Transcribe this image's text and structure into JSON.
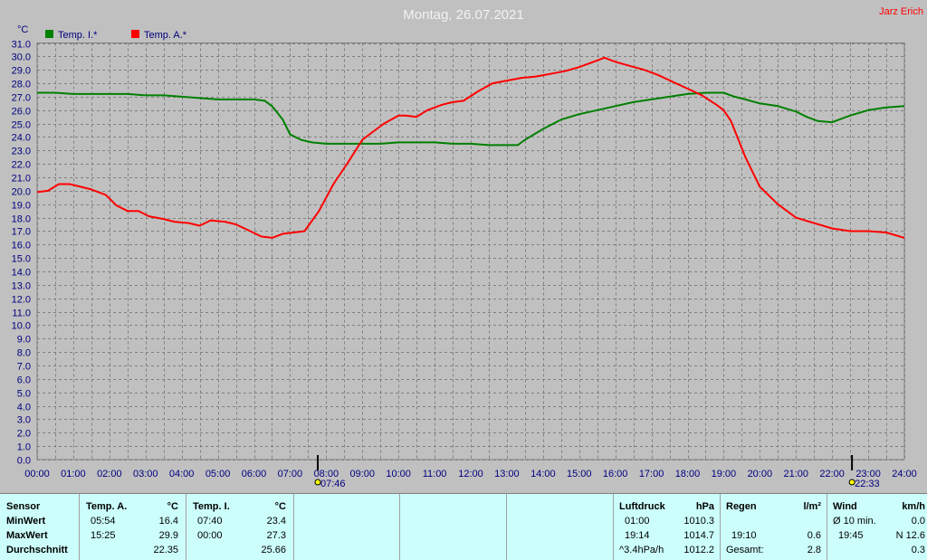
{
  "title": "Montag, 26.07.2021",
  "author": "Jarz Erich",
  "chart_data": {
    "type": "line",
    "ylabel": "°C",
    "ylim": [
      0,
      31
    ],
    "ytick_step": 1,
    "xlim": [
      0,
      24
    ],
    "x_ticks": [
      "00:00",
      "01:00",
      "02:00",
      "03:00",
      "04:00",
      "05:00",
      "06:00",
      "07:00",
      "08:00",
      "09:00",
      "10:00",
      "11:00",
      "12:00",
      "13:00",
      "14:00",
      "15:00",
      "16:00",
      "17:00",
      "18:00",
      "19:00",
      "20:00",
      "21:00",
      "22:00",
      "23:00",
      "24:00"
    ],
    "grid": true,
    "legend_position": "top-left",
    "series": [
      {
        "name": "Temp. I.*",
        "color": "#008000",
        "x": [
          0,
          0.5,
          1,
          1.5,
          2,
          2.5,
          3,
          3.5,
          4,
          4.5,
          5,
          5.5,
          6,
          6.3,
          6.5,
          6.8,
          7,
          7.3,
          7.6,
          8,
          8.5,
          9,
          9.5,
          10,
          10.5,
          11,
          11.5,
          12,
          12.5,
          13,
          13.3,
          13.5,
          14,
          14.5,
          15,
          15.5,
          16,
          16.5,
          17,
          17.5,
          18,
          18.5,
          19,
          19.3,
          19.6,
          20,
          20.5,
          21,
          21.3,
          21.6,
          22,
          22.5,
          23,
          23.5,
          24
        ],
        "y": [
          27.3,
          27.3,
          27.2,
          27.2,
          27.2,
          27.2,
          27.1,
          27.1,
          27.0,
          26.9,
          26.8,
          26.8,
          26.8,
          26.7,
          26.3,
          25.3,
          24.2,
          23.8,
          23.6,
          23.5,
          23.5,
          23.5,
          23.5,
          23.6,
          23.6,
          23.6,
          23.5,
          23.5,
          23.4,
          23.4,
          23.4,
          23.8,
          24.6,
          25.3,
          25.7,
          26.0,
          26.3,
          26.6,
          26.8,
          27.0,
          27.2,
          27.3,
          27.3,
          27.0,
          26.8,
          26.5,
          26.3,
          25.9,
          25.5,
          25.2,
          25.1,
          25.6,
          26.0,
          26.2,
          26.3
        ]
      },
      {
        "name": "Temp. A.*",
        "color": "#ff0000",
        "x": [
          0,
          0.3,
          0.6,
          0.9,
          1.2,
          1.5,
          1.9,
          2.2,
          2.5,
          2.8,
          3.1,
          3.5,
          3.8,
          4.2,
          4.5,
          4.8,
          5.2,
          5.5,
          5.9,
          6.2,
          6.5,
          6.8,
          7.1,
          7.4,
          7.8,
          8.2,
          8.6,
          9.0,
          9.3,
          9.6,
          10.0,
          10.2,
          10.5,
          10.8,
          11.2,
          11.5,
          11.8,
          12.2,
          12.6,
          13.0,
          13.4,
          13.8,
          14.2,
          14.6,
          15.0,
          15.4,
          15.7,
          16.0,
          16.4,
          16.8,
          17.2,
          17.6,
          18.0,
          18.4,
          18.8,
          19.0,
          19.2,
          19.6,
          20.0,
          20.5,
          21.0,
          21.5,
          22.0,
          22.5,
          23.0,
          23.5,
          24.0
        ],
        "y": [
          19.9,
          20.0,
          20.5,
          20.5,
          20.3,
          20.1,
          19.7,
          18.9,
          18.5,
          18.5,
          18.1,
          17.9,
          17.7,
          17.6,
          17.4,
          17.8,
          17.7,
          17.5,
          17.0,
          16.6,
          16.5,
          16.8,
          16.9,
          17.0,
          18.5,
          20.5,
          22.1,
          23.8,
          24.4,
          25.0,
          25.6,
          25.6,
          25.5,
          26.0,
          26.4,
          26.6,
          26.7,
          27.4,
          28.0,
          28.2,
          28.4,
          28.5,
          28.7,
          28.9,
          29.2,
          29.6,
          29.9,
          29.6,
          29.3,
          29.0,
          28.6,
          28.1,
          27.6,
          27.1,
          26.4,
          26.0,
          25.2,
          22.5,
          20.3,
          19.0,
          18.0,
          17.6,
          17.2,
          17.0,
          17.0,
          16.9,
          16.5
        ]
      }
    ],
    "markers": [
      {
        "time": "07:46",
        "label": "07:46"
      },
      {
        "time": "22:33",
        "label": "22:33"
      }
    ]
  },
  "stats": {
    "sensor": {
      "header": "Sensor",
      "rows": [
        "MinWert",
        "MaxWert",
        "Durchschnitt"
      ]
    },
    "temp_a": {
      "header": "Temp. A.",
      "unit": "°C",
      "min_time": "05:54",
      "min_value": "16.4",
      "max_time": "15:25",
      "max_value": "29.9",
      "avg_value": "22.35"
    },
    "temp_i": {
      "header": "Temp. I.",
      "unit": "°C",
      "min_time": "07:40",
      "min_value": "23.4",
      "max_time": "00:00",
      "max_value": "27.3",
      "avg_value": "25.66"
    },
    "luftdruck": {
      "header": "Luftdruck",
      "unit": "hPa",
      "min_time": "01:00",
      "min_value": "1010.3",
      "max_time": "19:14",
      "max_value": "1014.7",
      "trend_label": "^3.4hPa/h",
      "trend_value": "1012.2"
    },
    "regen": {
      "header": "Regen",
      "unit": "l/m²",
      "time": "19:10",
      "value": "0.6",
      "total_label": "Gesamt:",
      "total_value": "2.8"
    },
    "wind": {
      "header": "Wind",
      "unit": "km/h",
      "avg_label": "Ø 10 min.",
      "avg_value": "0.0",
      "gust_time": "19:45",
      "gust_value": "N 12.6",
      "last_value": "0.3"
    }
  }
}
